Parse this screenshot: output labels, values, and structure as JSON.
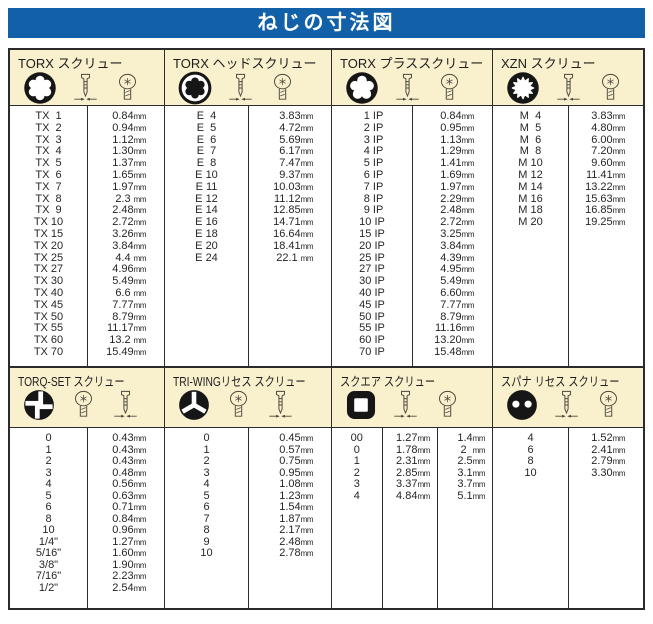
{
  "title_bar": {
    "label": "ねじの寸法図"
  },
  "colors": {
    "title_bg": "#1160a8",
    "header_bg": "#f9f1cd",
    "border": "#2b2b2b",
    "page_bg": "#ffffff"
  },
  "icons": {
    "side_icon": "screw-side-view-icon",
    "head_icon": "screw-head-top-icon",
    "drive_icons": [
      "torx-internal-drive-icon",
      "torx-external-drive-icon",
      "torx-plus-drive-icon",
      "xzn-triple-square-drive-icon",
      "torq-set-drive-icon",
      "tri-wing-drive-icon",
      "square-drive-icon",
      "spanner-recess-drive-icon"
    ]
  },
  "tables": [
    {
      "title": "TORX スクリュー",
      "drive_icon": "torx-internal-drive-icon",
      "unit": "mm",
      "rows": [
        [
          "TX  1",
          "0.84"
        ],
        [
          "TX  2",
          "0.94"
        ],
        [
          "TX  3",
          "1.12"
        ],
        [
          "TX  4",
          "1.30"
        ],
        [
          "TX  5",
          "1.37"
        ],
        [
          "TX  6",
          "1.65"
        ],
        [
          "TX  7",
          "1.97"
        ],
        [
          "TX  8",
          "2.3 "
        ],
        [
          "TX  9",
          "2.48"
        ],
        [
          "TX 10",
          "2.72"
        ],
        [
          "TX 15",
          "3.26"
        ],
        [
          "TX 20",
          "3.84"
        ],
        [
          "TX 25",
          "4.4 "
        ],
        [
          "TX 27",
          "4.96"
        ],
        [
          "TX 30",
          "5.49"
        ],
        [
          "TX 40",
          "6.6 "
        ],
        [
          "TX 45",
          "7.77"
        ],
        [
          "TX 50",
          "8.79"
        ],
        [
          "TX 55",
          "11.17"
        ],
        [
          "TX 60",
          "13.2 "
        ],
        [
          "TX 70",
          "15.49"
        ]
      ]
    },
    {
      "title": "TORX ヘッドスクリュー",
      "drive_icon": "torx-external-drive-icon",
      "unit": "mm",
      "rows": [
        [
          "E  4",
          "3.83"
        ],
        [
          "E  5",
          "4.72"
        ],
        [
          "E  6",
          "5.69"
        ],
        [
          "E  7",
          "6.17"
        ],
        [
          "E  8",
          "7.47"
        ],
        [
          "E 10",
          "9.37"
        ],
        [
          "E 11",
          "10.03"
        ],
        [
          "E 12",
          "11.12"
        ],
        [
          "E 14",
          "12.85"
        ],
        [
          "E 16",
          "14.71"
        ],
        [
          "E 18",
          "16.64"
        ],
        [
          "E 20",
          "18.41"
        ],
        [
          "E 24",
          "22.1 "
        ]
      ]
    },
    {
      "title": "TORX プラススクリュー",
      "drive_icon": "torx-plus-drive-icon",
      "unit": "mm",
      "rows": [
        [
          " 1 IP",
          "0.84"
        ],
        [
          " 2 IP",
          "0.95"
        ],
        [
          " 3 IP",
          "1.13"
        ],
        [
          " 4 IP",
          "1.29"
        ],
        [
          " 5 IP",
          "1.41"
        ],
        [
          " 6 IP",
          "1.69"
        ],
        [
          " 7 IP",
          "1.97"
        ],
        [
          " 8 IP",
          "2.29"
        ],
        [
          " 9 IP",
          "2.48"
        ],
        [
          "10 IP",
          "2.72"
        ],
        [
          "15 IP",
          "3.25"
        ],
        [
          "20 IP",
          "3.84"
        ],
        [
          "25 IP",
          "4.39"
        ],
        [
          "27 IP",
          "4.95"
        ],
        [
          "30 IP",
          "5.49"
        ],
        [
          "40 IP",
          "6.60"
        ],
        [
          "45 IP",
          "7.77"
        ],
        [
          "50 IP",
          "8.79"
        ],
        [
          "55 IP",
          "11.16"
        ],
        [
          "60 IP",
          "13.20"
        ],
        [
          "70 IP",
          "15.48"
        ]
      ]
    },
    {
      "title": "XZN スクリュー",
      "drive_icon": "xzn-triple-square-drive-icon",
      "unit": "mm",
      "rows": [
        [
          "M  4",
          "3.83"
        ],
        [
          "M  5",
          "4.80"
        ],
        [
          "M  6",
          "6.00"
        ],
        [
          "M  8",
          "7.20"
        ],
        [
          "M 10",
          "9.60"
        ],
        [
          "M 12",
          "11.41"
        ],
        [
          "M 14",
          "13.22"
        ],
        [
          "M 16",
          "15.63"
        ],
        [
          "M 18",
          "16.85"
        ],
        [
          "M 20",
          "19.25"
        ]
      ]
    },
    {
      "title": "TORQ-SET スクリュー",
      "drive_icon": "torq-set-drive-icon",
      "unit": "mm",
      "rows": [
        [
          "0",
          "0.43"
        ],
        [
          "1",
          "0.43"
        ],
        [
          "2",
          "0.43"
        ],
        [
          "3",
          "0.48"
        ],
        [
          "4",
          "0.56"
        ],
        [
          "5",
          "0.63"
        ],
        [
          "6",
          "0.71"
        ],
        [
          "8",
          "0.84"
        ],
        [
          "10",
          "0.96"
        ],
        [
          "1/4\"",
          "1.27"
        ],
        [
          "5/16\"",
          "1.60"
        ],
        [
          "3/8\"",
          "1.90"
        ],
        [
          "7/16\"",
          "2.23"
        ],
        [
          "1/2\"",
          "2.54"
        ]
      ]
    },
    {
      "title": "TRI-WINGリセス スクリュー",
      "drive_icon": "tri-wing-drive-icon",
      "unit": "mm",
      "rows": [
        [
          "0",
          "0.45"
        ],
        [
          "1",
          "0.57"
        ],
        [
          "2",
          "0.75"
        ],
        [
          "3",
          "0.95"
        ],
        [
          "4",
          "1.08"
        ],
        [
          "5",
          "1.23"
        ],
        [
          "6",
          "1.54"
        ],
        [
          "7",
          "1.87"
        ],
        [
          "8",
          "2.17"
        ],
        [
          "9",
          "2.48"
        ],
        [
          "10",
          "2.78"
        ]
      ]
    },
    {
      "title": "スクエア スクリュー",
      "drive_icon": "square-drive-icon",
      "unit": "mm",
      "rows": [
        [
          "00",
          "1.27",
          "1.4"
        ],
        [
          "0",
          "1.78",
          "2  "
        ],
        [
          "1",
          "2.31",
          "2.5"
        ],
        [
          "2",
          "2.85",
          "3.1"
        ],
        [
          "3",
          "3.37",
          "3.7"
        ],
        [
          "4",
          "4.84",
          "5.1"
        ]
      ]
    },
    {
      "title": "スパナ リセス スクリュー",
      "drive_icon": "spanner-recess-drive-icon",
      "unit": "mm",
      "rows": [
        [
          "4",
          "1.52"
        ],
        [
          "6",
          "2.41"
        ],
        [
          "8",
          "2.79"
        ],
        [
          "10",
          "3.30"
        ]
      ]
    }
  ]
}
